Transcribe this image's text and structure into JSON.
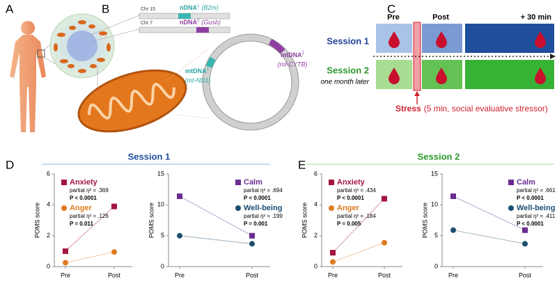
{
  "panel_labels": [
    "A",
    "B",
    "C",
    "D",
    "E"
  ],
  "panel_b": {
    "chromosomes": [
      {
        "chr": "Chr 15",
        "label": "nDNA",
        "sup": "1",
        "gene": "(B2m)"
      },
      {
        "chr": "Chr 7",
        "label": "nDNA",
        "sup": "2",
        "gene": "(Gusb)"
      }
    ],
    "mtdna": [
      {
        "label": "mtDNA",
        "sup": "1",
        "gene": "(mt-ND1)"
      },
      {
        "label": "mtDNA",
        "sup": "2",
        "gene": "(mt-CYTB)"
      }
    ]
  },
  "panel_c": {
    "timepoints": [
      "Pre",
      "Post",
      "+ 30 min"
    ],
    "sessions": [
      {
        "name": "Session 1"
      },
      {
        "name": "Session 2",
        "note": "one month later"
      }
    ],
    "stress": "Stress",
    "stress_detail": "(5 min, social evaluative stressor)"
  },
  "sections": [
    "Session 1",
    "Session 2"
  ],
  "chart_data": [
    {
      "type": "line",
      "categories": [
        "Pre",
        "Post"
      ],
      "ylabel": "POMS score",
      "ylim": [
        0,
        6
      ],
      "yticks": [
        0,
        2,
        4,
        6
      ],
      "legend": "upper left",
      "series": [
        {
          "name": "Anxiety",
          "color": "#a3163f",
          "marker": "square",
          "values": [
            1.0,
            3.9
          ],
          "effect": "partial η² = .369",
          "p": "P < 0.0001"
        },
        {
          "name": "Anger",
          "color": "#e07b20",
          "marker": "circle",
          "values": [
            0.25,
            0.95
          ],
          "effect": "partial η² = .126",
          "p": "P = 0.011"
        }
      ]
    },
    {
      "type": "line",
      "categories": [
        "Pre",
        "Post"
      ],
      "ylabel": "POMS score",
      "ylim": [
        0,
        15
      ],
      "yticks": [
        0,
        5,
        10,
        15
      ],
      "legend": "upper right",
      "series": [
        {
          "name": "Calm",
          "color": "#6a2c91",
          "marker": "square",
          "values": [
            11.4,
            5.0
          ],
          "effect": "partial η² = .694",
          "p": "P < 0.0001"
        },
        {
          "name": "Well-being",
          "color": "#1e4e6e",
          "marker": "circle",
          "values": [
            5.0,
            3.7
          ],
          "effect": "partial η² = .199",
          "p": "P = 0.001"
        }
      ]
    },
    {
      "type": "line",
      "categories": [
        "Pre",
        "Post"
      ],
      "ylabel": "POMS score",
      "ylim": [
        0,
        6
      ],
      "yticks": [
        0,
        2,
        4,
        6
      ],
      "legend": "upper left",
      "series": [
        {
          "name": "Anxiety",
          "color": "#a3163f",
          "marker": "square",
          "values": [
            0.9,
            4.4
          ],
          "effect": "partial η² = .434",
          "p": "P < 0.0001"
        },
        {
          "name": "Anger",
          "color": "#e07b20",
          "marker": "circle",
          "values": [
            0.3,
            1.55
          ],
          "effect": "partial η² = .184",
          "p": "P = 0.005"
        }
      ]
    },
    {
      "type": "line",
      "categories": [
        "Pre",
        "Post"
      ],
      "ylabel": "POMS score",
      "ylim": [
        0,
        15
      ],
      "yticks": [
        0,
        5,
        10,
        15
      ],
      "legend": "upper right",
      "series": [
        {
          "name": "Calm",
          "color": "#6a2c91",
          "marker": "square",
          "values": [
            11.4,
            5.9
          ],
          "effect": "partial η² = .661",
          "p": "P < 0.0001"
        },
        {
          "name": "Well-being",
          "color": "#1e4e6e",
          "marker": "circle",
          "values": [
            5.9,
            3.7
          ],
          "effect": "partial η² = .411",
          "p": "P < 0.0001"
        }
      ]
    }
  ]
}
